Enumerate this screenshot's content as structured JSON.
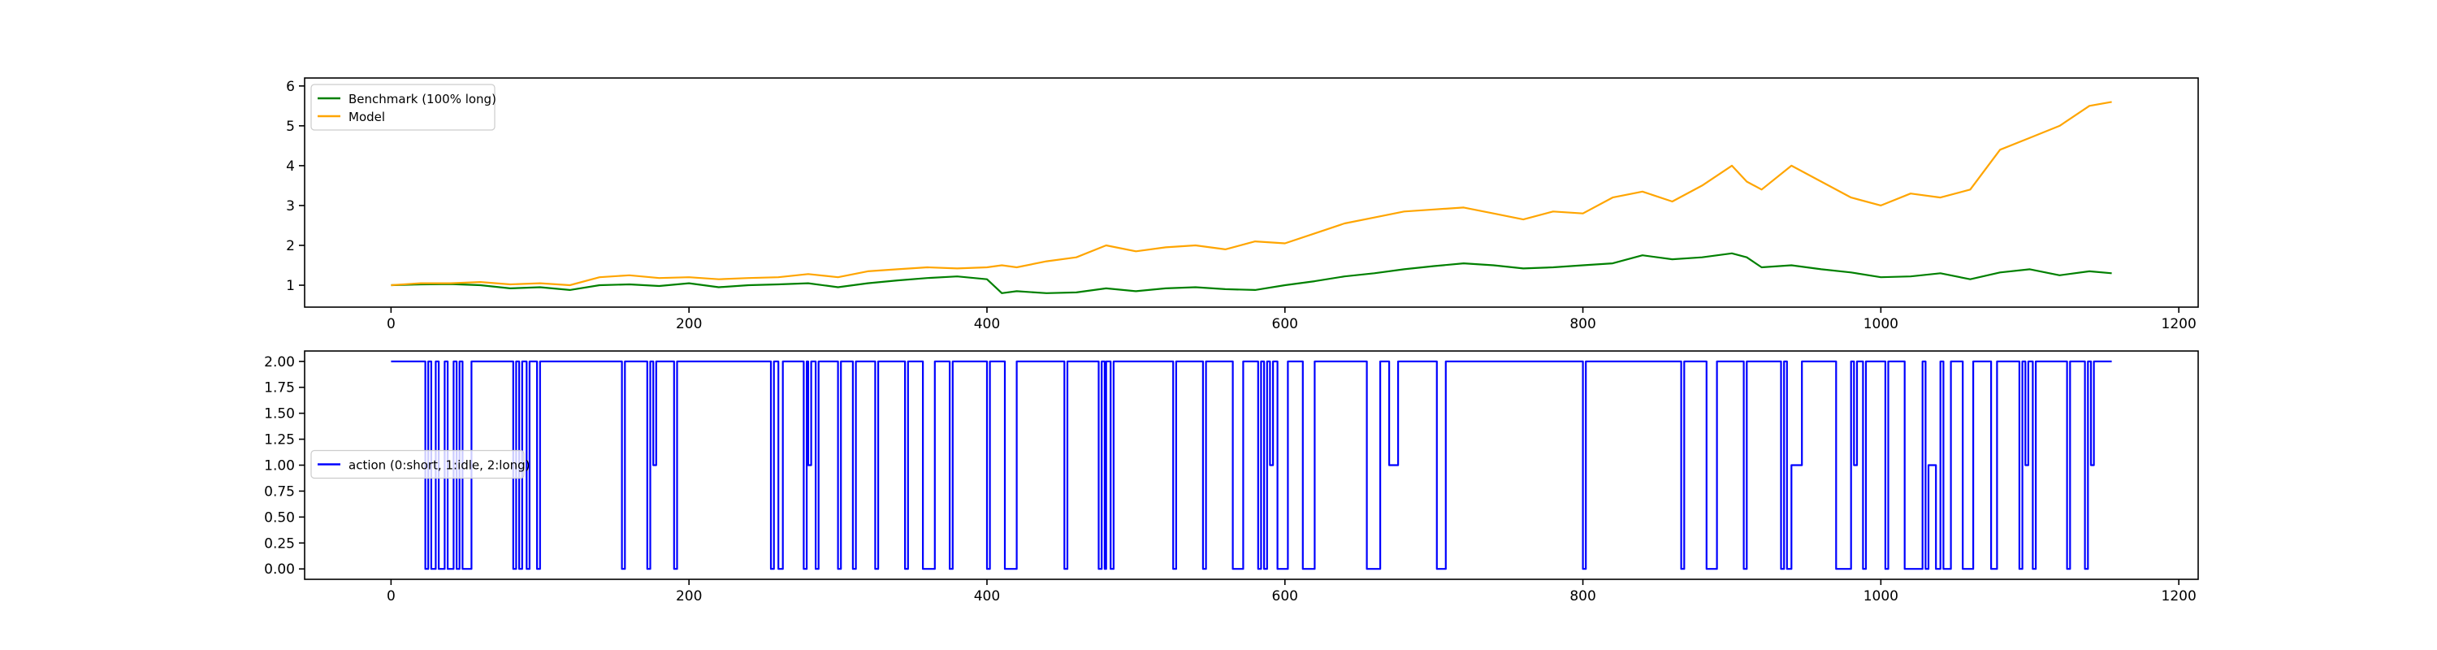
{
  "chart_data": [
    {
      "type": "line",
      "title": "",
      "xlabel": "",
      "ylabel": "",
      "xlim": [
        -58,
        1213
      ],
      "ylim": [
        0.45,
        6.2
      ],
      "xticks": [
        0,
        200,
        400,
        600,
        800,
        1000,
        1200
      ],
      "yticks": [
        1,
        2,
        3,
        4,
        5,
        6
      ],
      "grid": false,
      "legend_position": "top-left",
      "series": [
        {
          "name": "Benchmark (100% long)",
          "color": "#008000",
          "x": [
            0,
            20,
            40,
            60,
            80,
            100,
            120,
            140,
            160,
            180,
            200,
            220,
            240,
            260,
            280,
            300,
            320,
            340,
            360,
            380,
            400,
            410,
            420,
            440,
            460,
            480,
            500,
            520,
            540,
            560,
            580,
            600,
            620,
            640,
            660,
            680,
            700,
            720,
            740,
            760,
            780,
            800,
            820,
            840,
            860,
            880,
            900,
            910,
            920,
            940,
            960,
            980,
            1000,
            1020,
            1040,
            1060,
            1080,
            1100,
            1120,
            1140,
            1155
          ],
          "y": [
            1.0,
            1.02,
            1.03,
            1.0,
            0.92,
            0.95,
            0.88,
            1.0,
            1.02,
            0.98,
            1.05,
            0.95,
            1.0,
            1.02,
            1.05,
            0.95,
            1.05,
            1.12,
            1.18,
            1.22,
            1.15,
            0.8,
            0.85,
            0.8,
            0.82,
            0.92,
            0.85,
            0.92,
            0.95,
            0.9,
            0.88,
            1.0,
            1.1,
            1.22,
            1.3,
            1.4,
            1.48,
            1.55,
            1.5,
            1.42,
            1.45,
            1.5,
            1.55,
            1.75,
            1.65,
            1.7,
            1.8,
            1.7,
            1.45,
            1.5,
            1.4,
            1.32,
            1.2,
            1.22,
            1.3,
            1.15,
            1.32,
            1.4,
            1.25,
            1.35,
            1.3
          ]
        },
        {
          "name": "Model",
          "color": "#ffa500",
          "x": [
            0,
            20,
            40,
            60,
            80,
            100,
            120,
            140,
            160,
            180,
            200,
            220,
            240,
            260,
            280,
            300,
            320,
            340,
            360,
            380,
            400,
            410,
            420,
            440,
            460,
            480,
            500,
            520,
            540,
            560,
            580,
            600,
            620,
            640,
            660,
            680,
            700,
            720,
            740,
            760,
            780,
            800,
            820,
            840,
            860,
            880,
            900,
            910,
            920,
            940,
            960,
            980,
            1000,
            1020,
            1040,
            1060,
            1080,
            1100,
            1120,
            1140,
            1155
          ],
          "y": [
            1.0,
            1.05,
            1.05,
            1.08,
            1.02,
            1.05,
            1.0,
            1.2,
            1.25,
            1.18,
            1.2,
            1.15,
            1.18,
            1.2,
            1.28,
            1.2,
            1.35,
            1.4,
            1.45,
            1.42,
            1.45,
            1.5,
            1.45,
            1.6,
            1.7,
            2.0,
            1.85,
            1.95,
            2.0,
            1.9,
            2.1,
            2.05,
            2.3,
            2.55,
            2.7,
            2.85,
            2.9,
            2.95,
            2.8,
            2.65,
            2.85,
            2.8,
            3.2,
            3.35,
            3.1,
            3.5,
            4.0,
            3.6,
            3.4,
            4.0,
            3.6,
            3.2,
            3.0,
            3.3,
            3.2,
            3.4,
            4.4,
            4.7,
            5.0,
            5.5,
            5.6
          ]
        }
      ]
    },
    {
      "type": "line",
      "title": "",
      "xlabel": "",
      "ylabel": "",
      "xlim": [
        -58,
        1213
      ],
      "ylim": [
        -0.1,
        2.1
      ],
      "xticks": [
        0,
        200,
        400,
        600,
        800,
        1000,
        1200
      ],
      "yticks": [
        0.0,
        0.25,
        0.5,
        0.75,
        1.0,
        1.25,
        1.5,
        1.75,
        2.0
      ],
      "ytick_labels": [
        "0.00",
        "0.25",
        "0.50",
        "0.75",
        "1.00",
        "1.25",
        "1.50",
        "1.75",
        "2.00"
      ],
      "grid": false,
      "legend_position": "center-left",
      "series": [
        {
          "name": "action (0:short, 1:idle, 2:long)",
          "color": "#0000ff",
          "segments": [
            [
              0,
              2
            ],
            [
              23,
              0
            ],
            [
              25,
              2
            ],
            [
              27,
              0
            ],
            [
              30,
              2
            ],
            [
              32,
              0
            ],
            [
              35,
              0
            ],
            [
              36,
              2
            ],
            [
              38,
              0
            ],
            [
              41,
              0
            ],
            [
              42,
              2
            ],
            [
              44,
              0
            ],
            [
              46,
              2
            ],
            [
              48,
              0
            ],
            [
              53,
              0
            ],
            [
              54,
              2
            ],
            [
              82,
              0
            ],
            [
              84,
              2
            ],
            [
              86,
              0
            ],
            [
              88,
              2
            ],
            [
              91,
              0
            ],
            [
              93,
              2
            ],
            [
              98,
              0
            ],
            [
              100,
              2
            ],
            [
              155,
              0
            ],
            [
              157,
              2
            ],
            [
              172,
              0
            ],
            [
              174,
              2
            ],
            [
              176,
              1
            ],
            [
              178,
              2
            ],
            [
              190,
              0
            ],
            [
              192,
              2
            ],
            [
              255,
              0
            ],
            [
              257,
              2
            ],
            [
              260,
              0
            ],
            [
              262,
              0
            ],
            [
              263,
              2
            ],
            [
              277,
              0
            ],
            [
              279,
              2
            ],
            [
              280,
              1
            ],
            [
              282,
              2
            ],
            [
              285,
              0
            ],
            [
              287,
              2
            ],
            [
              300,
              0
            ],
            [
              302,
              2
            ],
            [
              310,
              0
            ],
            [
              312,
              2
            ],
            [
              325,
              0
            ],
            [
              327,
              2
            ],
            [
              345,
              0
            ],
            [
              347,
              2
            ],
            [
              357,
              0
            ],
            [
              363,
              0
            ],
            [
              365,
              2
            ],
            [
              375,
              0
            ],
            [
              377,
              2
            ],
            [
              400,
              0
            ],
            [
              402,
              2
            ],
            [
              412,
              0
            ],
            [
              418,
              0
            ],
            [
              420,
              2
            ],
            [
              452,
              0
            ],
            [
              454,
              2
            ],
            [
              475,
              0
            ],
            [
              477,
              2
            ],
            [
              479,
              0
            ],
            [
              480,
              2
            ],
            [
              483,
              0
            ],
            [
              485,
              2
            ],
            [
              525,
              0
            ],
            [
              527,
              2
            ],
            [
              545,
              0
            ],
            [
              547,
              2
            ],
            [
              565,
              0
            ],
            [
              570,
              0
            ],
            [
              572,
              2
            ],
            [
              582,
              0
            ],
            [
              584,
              2
            ],
            [
              586,
              0
            ],
            [
              588,
              2
            ],
            [
              590,
              1
            ],
            [
              592,
              2
            ],
            [
              595,
              0
            ],
            [
              600,
              0
            ],
            [
              602,
              2
            ],
            [
              612,
              0
            ],
            [
              618,
              0
            ],
            [
              620,
              2
            ],
            [
              655,
              0
            ],
            [
              662,
              0
            ],
            [
              664,
              2
            ],
            [
              670,
              1
            ],
            [
              674,
              1
            ],
            [
              676,
              2
            ],
            [
              702,
              0
            ],
            [
              706,
              0
            ],
            [
              708,
              2
            ],
            [
              800,
              0
            ],
            [
              802,
              2
            ],
            [
              866,
              0
            ],
            [
              868,
              2
            ],
            [
              883,
              0
            ],
            [
              888,
              0
            ],
            [
              890,
              2
            ],
            [
              908,
              0
            ],
            [
              910,
              2
            ],
            [
              933,
              0
            ],
            [
              935,
              2
            ],
            [
              937,
              0
            ],
            [
              940,
              1
            ],
            [
              945,
              1
            ],
            [
              947,
              2
            ],
            [
              970,
              0
            ],
            [
              978,
              0
            ],
            [
              980,
              2
            ],
            [
              982,
              1
            ],
            [
              984,
              2
            ],
            [
              988,
              0
            ],
            [
              990,
              2
            ],
            [
              1003,
              0
            ],
            [
              1005,
              2
            ],
            [
              1016,
              0
            ],
            [
              1026,
              0
            ],
            [
              1028,
              2
            ],
            [
              1030,
              0
            ],
            [
              1032,
              1
            ],
            [
              1035,
              1
            ],
            [
              1037,
              0
            ],
            [
              1040,
              2
            ],
            [
              1042,
              0
            ],
            [
              1045,
              0
            ],
            [
              1047,
              2
            ],
            [
              1055,
              0
            ],
            [
              1060,
              0
            ],
            [
              1062,
              2
            ],
            [
              1074,
              0
            ],
            [
              1076,
              0
            ],
            [
              1078,
              2
            ],
            [
              1093,
              0
            ],
            [
              1095,
              2
            ],
            [
              1097,
              1
            ],
            [
              1099,
              2
            ],
            [
              1102,
              0
            ],
            [
              1104,
              2
            ],
            [
              1125,
              0
            ],
            [
              1127,
              2
            ],
            [
              1137,
              0
            ],
            [
              1139,
              2
            ],
            [
              1141,
              1
            ],
            [
              1143,
              2
            ],
            [
              1155,
              2
            ]
          ]
        }
      ]
    }
  ]
}
